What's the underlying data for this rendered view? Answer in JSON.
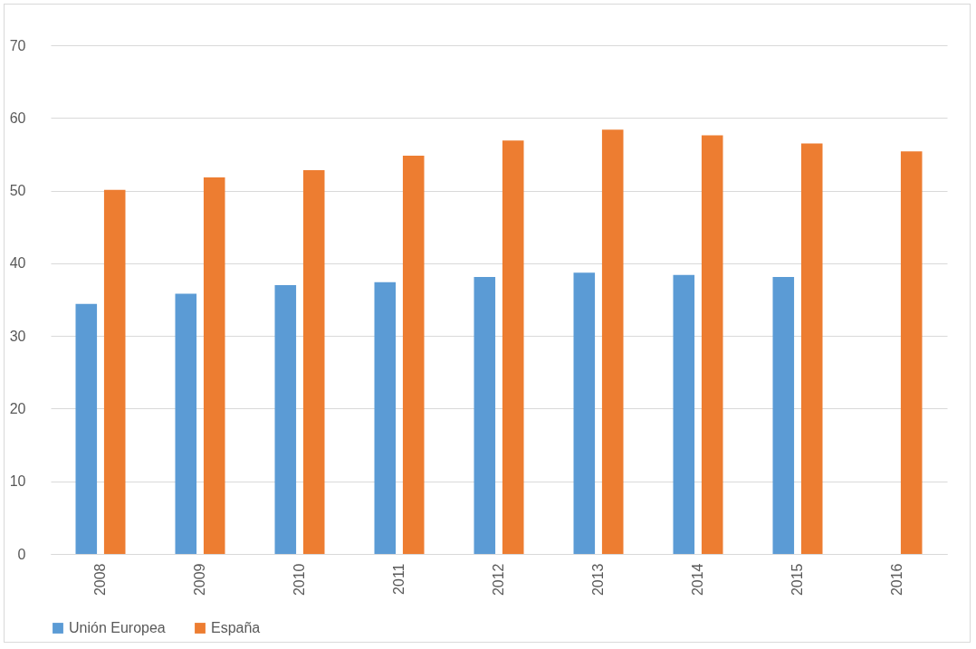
{
  "chart_data": {
    "type": "bar",
    "categories": [
      "2008",
      "2009",
      "2010",
      "2011",
      "2012",
      "2013",
      "2014",
      "2015",
      "2016"
    ],
    "series": [
      {
        "name": "Unión Europea",
        "color": "#5b9bd5",
        "values": [
          34.4,
          35.8,
          37.0,
          37.4,
          38.1,
          38.7,
          38.4,
          38.1,
          null
        ]
      },
      {
        "name": "España",
        "color": "#ed7d31",
        "values": [
          50.1,
          51.8,
          52.8,
          54.8,
          56.9,
          58.4,
          57.6,
          56.5,
          55.4
        ]
      }
    ],
    "ylim": [
      0,
      70
    ],
    "yticks": [
      0,
      10,
      20,
      30,
      40,
      50,
      60,
      70
    ],
    "grid": "y",
    "legend": "bottom"
  }
}
